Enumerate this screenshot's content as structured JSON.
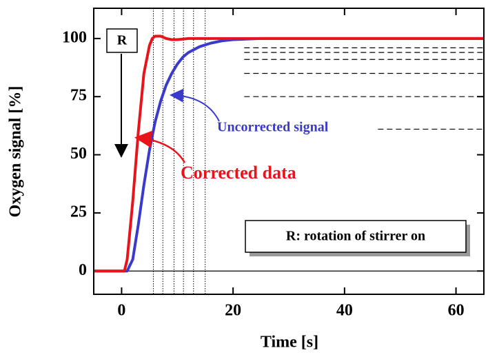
{
  "chart_data": {
    "type": "line",
    "xlabel": "Time [s]",
    "ylabel": "Oxygen signal [%]",
    "xlim": [
      -5,
      65
    ],
    "ylim": [
      -10,
      113
    ],
    "xticks": [
      0,
      20,
      40,
      60
    ],
    "yticks": [
      0,
      25,
      50,
      75,
      100
    ],
    "series": [
      {
        "name": "Corrected data",
        "color": "#e8141c",
        "x": [
          -5,
          0,
          0.5,
          1,
          2,
          3,
          4,
          5,
          5.5,
          6,
          7,
          8,
          9,
          10,
          12,
          15,
          20,
          30,
          40,
          50,
          60,
          65
        ],
        "values": [
          0,
          0,
          0,
          5,
          30,
          60,
          85,
          97,
          100,
          101,
          101,
          100,
          99.5,
          99.5,
          100,
          100,
          100,
          100,
          100,
          100,
          100,
          100
        ]
      },
      {
        "name": "Uncorrected signal",
        "color": "#3a3acc",
        "x": [
          -5,
          0,
          1,
          2,
          3,
          4,
          5,
          6,
          7,
          8,
          9,
          10,
          11,
          12,
          14,
          16,
          18,
          20,
          25,
          30,
          40,
          50,
          60,
          65
        ],
        "values": [
          0,
          0,
          0,
          5,
          20,
          37,
          52,
          64,
          73,
          80,
          85,
          89,
          92,
          94,
          96.5,
          98,
          99,
          99.5,
          100,
          100,
          100,
          100,
          100,
          100
        ]
      }
    ],
    "reference_levels": [
      61,
      75,
      85,
      91,
      94,
      96
    ],
    "reference_times": [
      5.7,
      7.4,
      9.4,
      11.1,
      12.9,
      15
    ],
    "annotations": [
      "R",
      "R: rotation of stirrer on"
    ]
  }
}
